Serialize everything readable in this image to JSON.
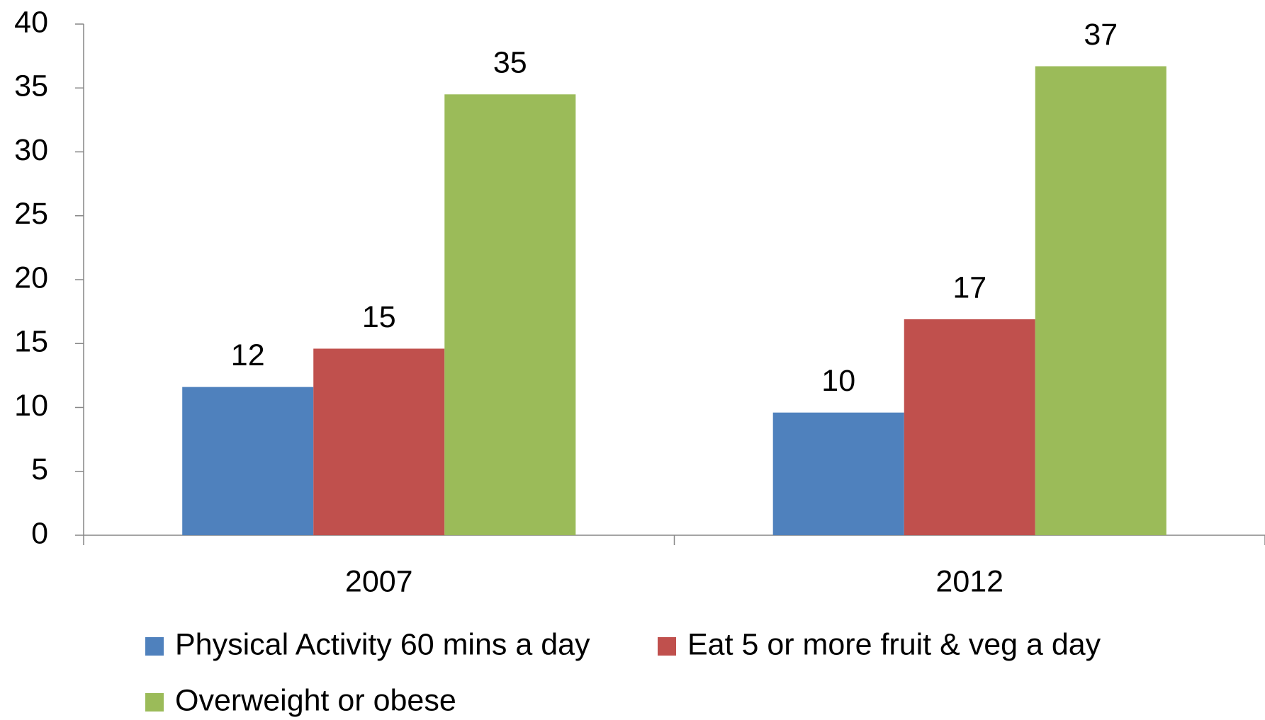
{
  "chart_data": {
    "type": "bar",
    "categories": [
      "2007",
      "2012"
    ],
    "series": [
      {
        "name": "Physical Activity 60 mins a day",
        "color": "#4f81bd",
        "values": [
          11.6,
          9.6
        ],
        "value_labels": [
          "12",
          "10"
        ]
      },
      {
        "name": "Eat 5 or more fruit & veg a day",
        "color": "#c0504d",
        "values": [
          14.6,
          16.9
        ],
        "value_labels": [
          "15",
          "17"
        ]
      },
      {
        "name": "Overweight or obese",
        "color": "#9bbb59",
        "values": [
          34.5,
          36.7
        ],
        "value_labels": [
          "35",
          "37"
        ]
      }
    ],
    "ylim": [
      0,
      40
    ],
    "yticks": [
      0,
      5,
      10,
      15,
      20,
      25,
      30,
      35,
      40
    ],
    "legend": "bottom"
  }
}
